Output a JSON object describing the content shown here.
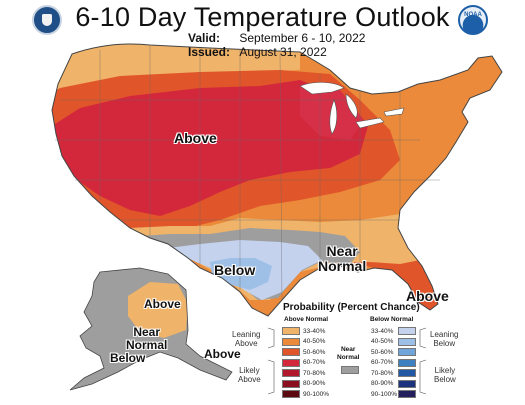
{
  "header": {
    "title": "6-10 Day Temperature Outlook",
    "valid_label": "Valid:",
    "valid_value": "September 6 - 10, 2022",
    "issued_label": "Issued:",
    "issued_value": "August 31, 2022",
    "left_logo": "doc-seal-logo",
    "right_logo": "noaa-logo",
    "right_logo_text": "NOAA"
  },
  "map_labels": {
    "above_main": "Above",
    "below_main": "Below",
    "near_normal_l1": "Near",
    "near_normal_l2": "Normal",
    "above_florida": "Above",
    "alaska_above_north": "Above",
    "alaska_near_l1": "Near",
    "alaska_near_l2": "Normal",
    "alaska_below": "Below",
    "alaska_above_south": "Above"
  },
  "legend": {
    "title": "Probability (Percent Chance)",
    "above_head": "Above Normal",
    "below_head": "Below Normal",
    "near_head_l1": "Near",
    "near_head_l2": "Normal",
    "leaning_above_l1": "Leaning",
    "leaning_above_l2": "Above",
    "likely_above_l1": "Likely",
    "likely_above_l2": "Above",
    "leaning_below_l1": "Leaning",
    "leaning_below_l2": "Below",
    "likely_below_l1": "Likely",
    "likely_below_l2": "Below",
    "above_bins": [
      {
        "label": "33-40%",
        "color": "#efb36a"
      },
      {
        "label": "40-50%",
        "color": "#ea8a3a"
      },
      {
        "label": "50-60%",
        "color": "#e1552a"
      },
      {
        "label": "60-70%",
        "color": "#d3283c"
      },
      {
        "label": "70-80%",
        "color": "#b1182c"
      },
      {
        "label": "80-90%",
        "color": "#8a0f20"
      },
      {
        "label": "90-100%",
        "color": "#5c0811"
      }
    ],
    "below_bins": [
      {
        "label": "33-40%",
        "color": "#c4d2ee"
      },
      {
        "label": "40-50%",
        "color": "#9fc0e6"
      },
      {
        "label": "50-60%",
        "color": "#6fa5d8"
      },
      {
        "label": "60-70%",
        "color": "#3e7fc0"
      },
      {
        "label": "70-80%",
        "color": "#2157a3"
      },
      {
        "label": "80-90%",
        "color": "#1b347d"
      },
      {
        "label": "90-100%",
        "color": "#231f5c"
      }
    ],
    "near_color": "#9e9e9e"
  }
}
